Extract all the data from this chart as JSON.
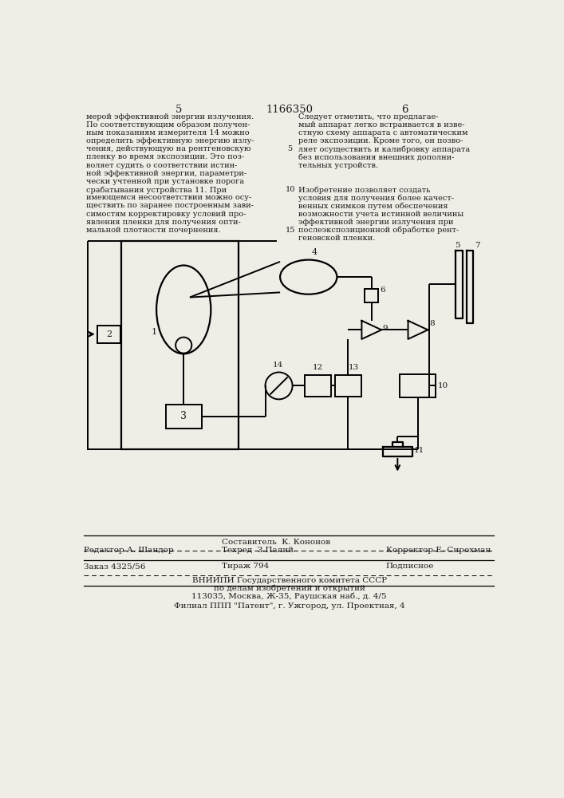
{
  "bg_color": "#f0ede6",
  "text_color": "#1a1a1a",
  "page_number_left": "5",
  "patent_number": "1166350",
  "page_number_right": "6",
  "left_col_text": [
    "мерой эффективной энергии излучения.",
    "По соответствующим образом получен-",
    "ным показаниям измерителя 14 можно",
    "определить эффективную энергию излу-",
    "чения, действующую на рентгеновскую",
    "пленку во время экспозиции. Это поз-",
    "воляет судить о соответствии истин-",
    "ной эффективной энергии, параметри-",
    "чески учтенной при установке порога",
    "срабатывания устройства 11. При",
    "имеющемся несоответствии можно осу-",
    "ществить по заранее построенным зави-",
    "симостям корректировку условий про-",
    "явления пленки для получения опти-",
    "мальной плотности почернения."
  ],
  "right_col_text_top": [
    "Следует отметить, что предлагае-",
    "мый аппарат легко встраивается в изве-",
    "стную схему аппарата с автоматическим",
    "реле экспозиции. Кроме того, он позво-",
    "ляет осуществить и калибровку аппарата",
    "без использования внешних дополни-",
    "тельных устройств."
  ],
  "right_col_text_bottom": [
    "Изобретение позволяет создать",
    "условия для получения более качест-",
    "венных снимков путем обеспечения",
    "возможности учета истинной величины",
    "эффективной энергии излучения при",
    "послеэкспозиционной обработке рент-",
    "геновской пленки."
  ],
  "footer_top_left": "Редактор А. Шандор",
  "footer_top_center1": "Составитель  К. Кононов",
  "footer_top_center2": "Техред  З.Палий",
  "footer_top_right": "Корректор Е. Сирохман",
  "footer_mid_left": "Заказ 4325/56",
  "footer_mid_center": "Тираж 794",
  "footer_mid_right": "Подписное",
  "footer_bot1": "ВНИИПИ Государственного комитета СССР",
  "footer_bot2": "по делам изобретений и открытий",
  "footer_bot3": "113035, Москва, Ж-35, Раушская наб., д. 4/5",
  "footer_bot4": "Филиал ППП \"Патент\", г. Ужгород, ул. Проектная, 4"
}
